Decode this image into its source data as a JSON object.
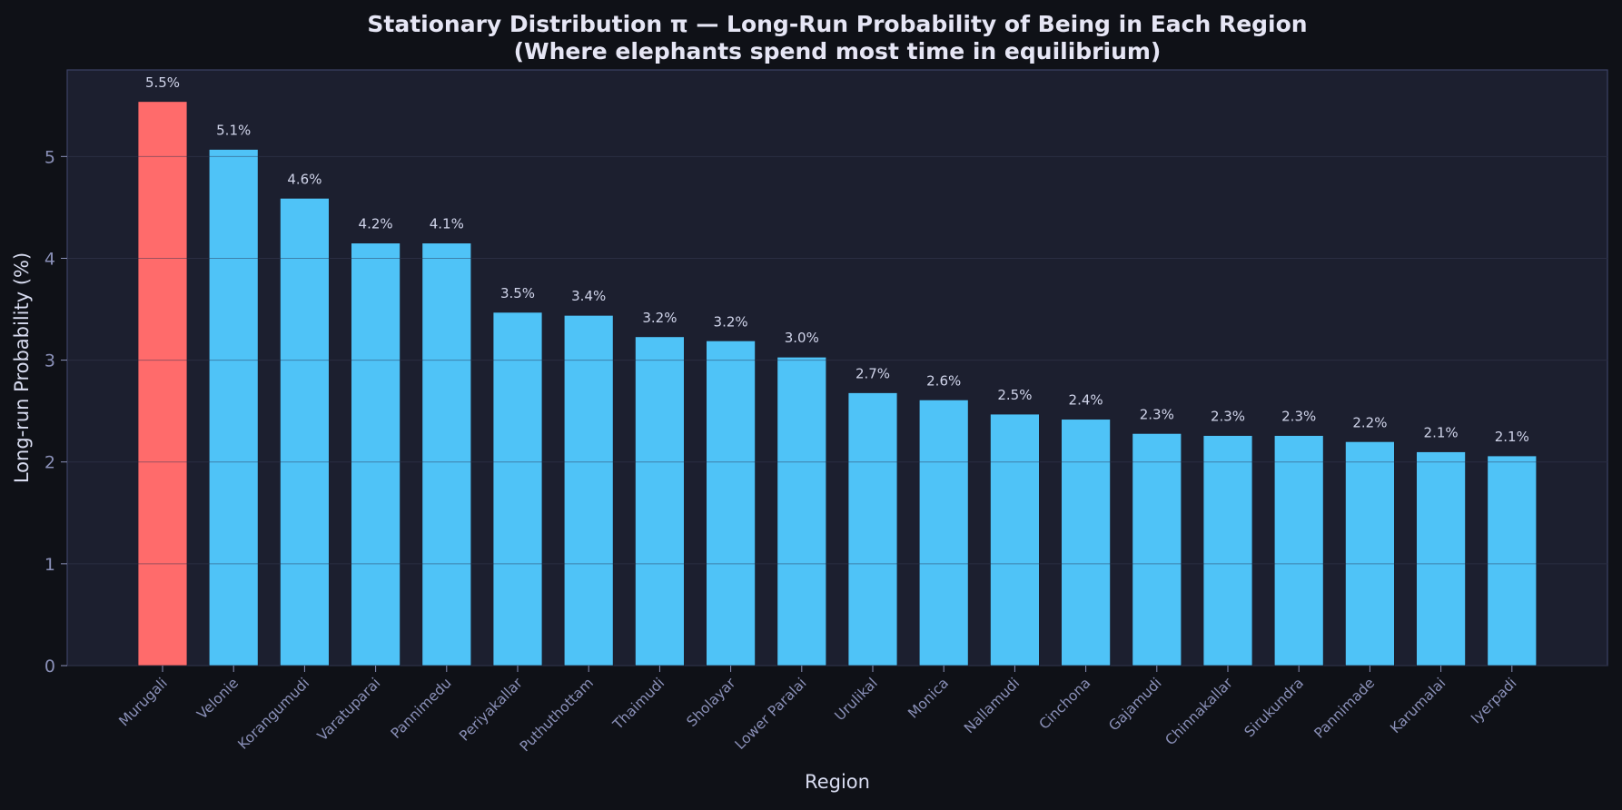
{
  "chart_data": {
    "type": "bar",
    "title": "Stationary Distribution  π — Long-Run Probability of Being in Each Region",
    "subtitle": "(Where elephants spend most time in equilibrium)",
    "xlabel": "Region",
    "ylabel": "Long-run Probability (%)",
    "ylim": [
      0,
      5.85
    ],
    "yticks": [
      0,
      1,
      2,
      3,
      4,
      5
    ],
    "grid": true,
    "categories": [
      "Murugali",
      "Velonie",
      "Korangumudi",
      "Varatuparai",
      "Pannimedu",
      "Periyakallar",
      "Puthuthottam",
      "Thaimudi",
      "Sholayar",
      "Lower Paralai",
      "Urulikal",
      "Monica",
      "Nallamudi",
      "Cinchona",
      "Gajamudi",
      "Chinnakallar",
      "Sirukundra",
      "Pannimade",
      "Karumalai",
      "Iyerpadi"
    ],
    "values": [
      5.54,
      5.07,
      4.59,
      4.15,
      4.15,
      3.47,
      3.44,
      3.23,
      3.19,
      3.03,
      2.68,
      2.61,
      2.47,
      2.42,
      2.28,
      2.26,
      2.26,
      2.2,
      2.1,
      2.06
    ],
    "value_labels": [
      "5.5%",
      "5.1%",
      "4.6%",
      "4.2%",
      "4.1%",
      "3.5%",
      "3.4%",
      "3.2%",
      "3.2%",
      "3.0%",
      "2.7%",
      "2.6%",
      "2.5%",
      "2.4%",
      "2.3%",
      "2.3%",
      "2.3%",
      "2.2%",
      "2.1%",
      "2.1%"
    ],
    "highlight_index": 0,
    "colors": {
      "highlight": "#ff6b6b",
      "bar": "#4fc3f7",
      "figure_bg": "#0f1117",
      "plot_bg": "#1c1f2f",
      "text": "#e6e6f5",
      "tick": "#8a90b8",
      "grid": "#2a2e42"
    }
  }
}
